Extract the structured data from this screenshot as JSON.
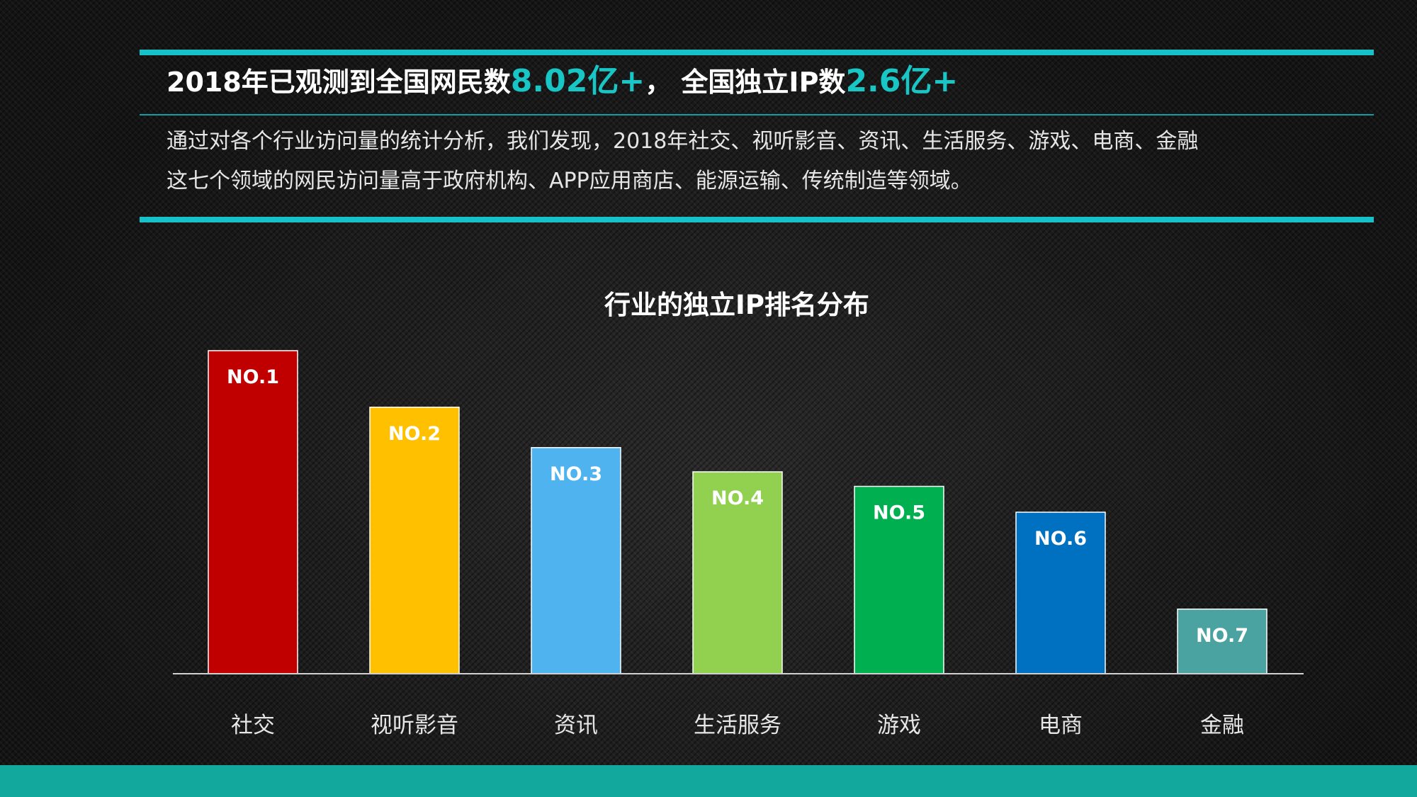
{
  "header": {
    "headline_part1": "2018年已观测到全国网民数",
    "headline_value1": "8.02亿+",
    "headline_part2": "，  全国独立IP数",
    "headline_value2": "2.6亿+",
    "description_line1": "通过对各个行业访问量的统计分析，我们发现，2018年社交、视听影音、资讯、生活服务、游戏、电商、金融",
    "description_line2": "这七个领域的网民访问量高于政府机构、APP应用商店、能源运输、传统制造等领域。"
  },
  "colors": {
    "accent": "#17c1c9",
    "bottom_band": "#13a89e"
  },
  "chart_data": {
    "type": "bar",
    "title": "行业的独立IP排名分布",
    "categories": [
      "社交",
      "视听影音",
      "资讯",
      "生活服务",
      "游戏",
      "电商",
      "金融"
    ],
    "values": [
      100,
      82.5,
      70,
      62.5,
      58,
      50,
      20
    ],
    "value_unit": "relative to NO.1 = 100",
    "bar_labels": [
      "NO.1",
      "NO.2",
      "NO.3",
      "NO.4",
      "NO.5",
      "NO.6",
      "NO.7"
    ],
    "bar_colors": [
      "#c00000",
      "#ffc000",
      "#4fb3f0",
      "#92d050",
      "#00b050",
      "#0070c0",
      "#4aa3a0"
    ],
    "xlabel": "",
    "ylabel": "",
    "ylim": [
      0,
      100
    ],
    "grid": false,
    "legend": "none"
  }
}
